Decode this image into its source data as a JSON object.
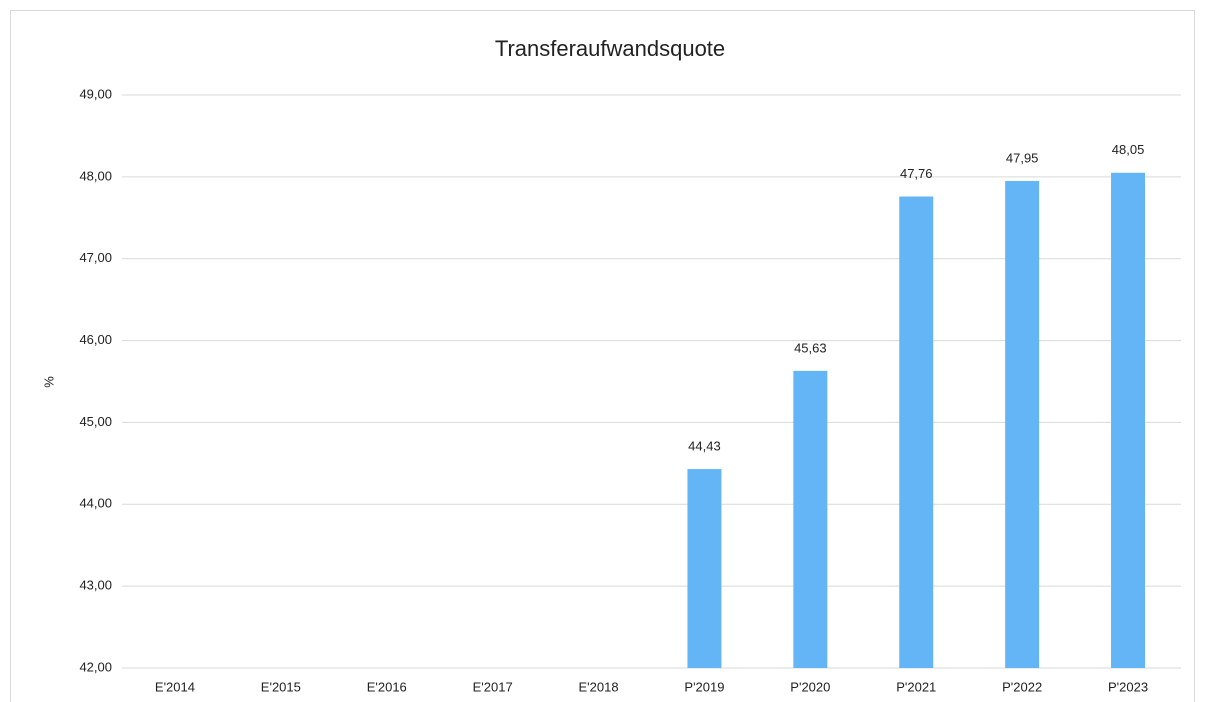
{
  "chart_data": {
    "type": "bar",
    "title": "Transferaufwandsquote",
    "y_label": "%",
    "categories": [
      "E'2014",
      "E'2015",
      "E'2016",
      "E'2017",
      "E'2018",
      "P'2019",
      "P'2020",
      "P'2021",
      "P'2022",
      "P'2023"
    ],
    "values": [
      null,
      null,
      null,
      null,
      null,
      44.43,
      45.63,
      47.76,
      47.95,
      48.05
    ],
    "value_labels": [
      null,
      null,
      null,
      null,
      null,
      "44,43",
      "45,63",
      "47,76",
      "47,95",
      "48,05"
    ],
    "color": "#64b5f6",
    "ylim": [
      42,
      49
    ],
    "yticks": [
      {
        "value": 42,
        "label": "42,00"
      },
      {
        "value": 43,
        "label": "43,00"
      },
      {
        "value": 44,
        "label": "44,00"
      },
      {
        "value": 45,
        "label": "45,00"
      },
      {
        "value": 46,
        "label": "46,00"
      },
      {
        "value": 47,
        "label": "47,00"
      },
      {
        "value": 48,
        "label": "48,00"
      },
      {
        "value": 49,
        "label": "49,00"
      }
    ],
    "grid": true
  }
}
